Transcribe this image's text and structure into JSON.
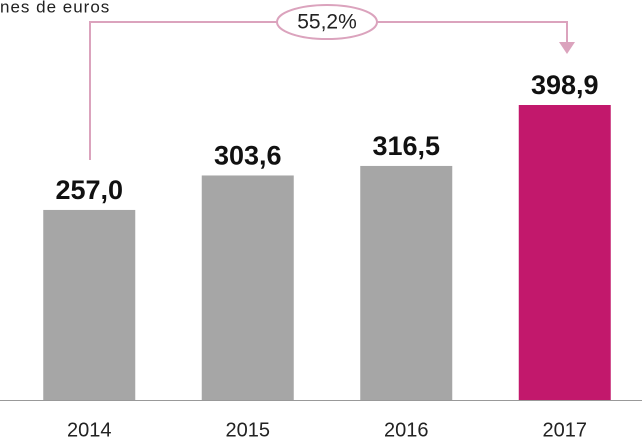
{
  "chart_data": {
    "type": "bar",
    "subtitle": "nes de euros",
    "annotation": "55,2%",
    "categories": [
      "2014",
      "2015",
      "2016",
      "2017"
    ],
    "values": [
      257.0,
      303.6,
      316.5,
      398.9
    ],
    "value_labels": [
      "257,0",
      "303,6",
      "316,5",
      "398,9"
    ],
    "colors": [
      "#a6a6a6",
      "#a6a6a6",
      "#a6a6a6",
      "#c2186c"
    ]
  }
}
